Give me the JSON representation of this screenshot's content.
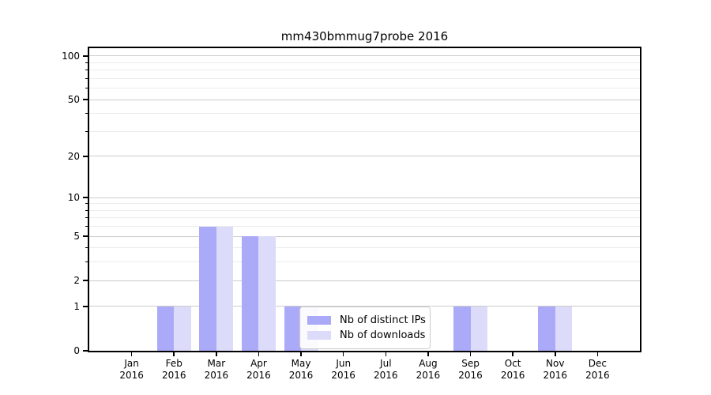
{
  "title": "mm430bmmug7probe 2016",
  "chart_data": {
    "type": "bar",
    "title": "mm430bmmug7probe 2016",
    "categories": [
      "Jan",
      "Feb",
      "Mar",
      "Apr",
      "May",
      "Jun",
      "Jul",
      "Aug",
      "Sep",
      "Oct",
      "Nov",
      "Dec"
    ],
    "x_tick_second_line": "2016",
    "series": [
      {
        "name": "Nb of distinct IPs",
        "color": "#abaaf8",
        "values": [
          0,
          1,
          6,
          5,
          1,
          0,
          0,
          0,
          1,
          0,
          1,
          0
        ]
      },
      {
        "name": "Nb of downloads",
        "color": "#dcdbfa",
        "values": [
          0,
          1,
          6,
          5,
          1,
          0,
          0,
          0,
          1,
          0,
          1,
          0
        ]
      }
    ],
    "xlabel": "",
    "ylabel": "",
    "y_scale": "log1p",
    "ylim": [
      0,
      113
    ],
    "y_major_ticks": [
      0,
      1,
      2,
      5,
      10,
      20,
      50,
      100
    ],
    "y_minor_ticks": [
      3,
      4,
      6,
      7,
      8,
      9,
      30,
      40,
      60,
      70,
      80,
      90
    ],
    "grid": "both",
    "legend_position": "lower center"
  },
  "legend": {
    "items": [
      "Nb of distinct IPs",
      "Nb of downloads"
    ]
  },
  "colors": {
    "grid_major": "#cccccc",
    "grid_minor": "#ebebeb",
    "spine": "#000000",
    "legend_border": "#cccccc",
    "background": "#ffffff"
  }
}
